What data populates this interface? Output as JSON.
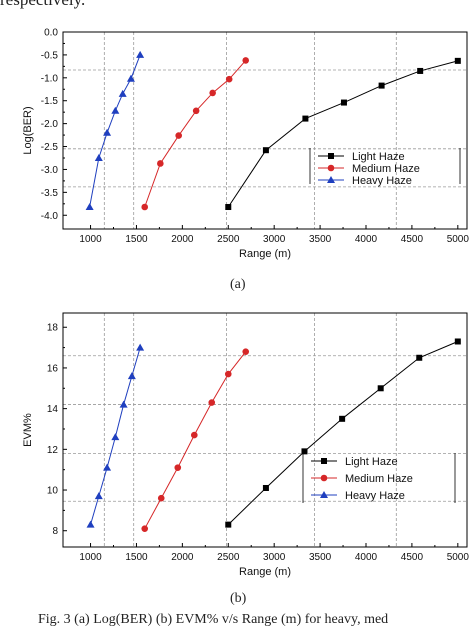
{
  "page": {
    "top_text": "respectively.",
    "caption": "Fig. 3 (a) Log(BER) (b) EVM% v/s Range (m) for heavy, med"
  },
  "chart_data": [
    {
      "type": "line",
      "panel_label": "(a)",
      "xlabel": "Range (m)",
      "ylabel": "Log(BER)",
      "xlim": [
        700,
        5100
      ],
      "ylim": [
        -4.3,
        0.0
      ],
      "xticks": [
        1000,
        1500,
        2000,
        2500,
        3000,
        3500,
        4000,
        4500,
        5000
      ],
      "yticks": [
        0.0,
        -0.5,
        -1.0,
        -1.5,
        -2.0,
        -2.5,
        -3.0,
        -3.5,
        -4.0
      ],
      "ytick_labels": [
        "0.0",
        "-0.5",
        "-1.0",
        "-1.5",
        "-2.0",
        "-2.5",
        "-3.0",
        "-3.5",
        "-4.0"
      ],
      "ref_x": [
        1150,
        1470,
        2480,
        3440,
        4330
      ],
      "ref_y": [
        -0.83,
        -2.55,
        -3.38
      ],
      "legend_position": "lower-right",
      "series": [
        {
          "name": "Light Haze",
          "color": "#000000",
          "marker": "square",
          "x": [
            2500,
            2910,
            3340,
            3760,
            4170,
            4590,
            5000
          ],
          "y": [
            -3.82,
            -2.58,
            -1.89,
            -1.54,
            -1.17,
            -0.85,
            -0.63
          ]
        },
        {
          "name": "Medium Haze",
          "color": "#d62728",
          "marker": "circle",
          "x": [
            1590,
            1760,
            1960,
            2150,
            2330,
            2510,
            2690
          ],
          "y": [
            -3.82,
            -2.87,
            -2.26,
            -1.72,
            -1.33,
            -1.03,
            -0.62
          ]
        },
        {
          "name": "Heavy Haze",
          "color": "#1f3fbf",
          "marker": "triangle",
          "x": [
            990,
            1090,
            1180,
            1270,
            1350,
            1440,
            1540
          ],
          "y": [
            -3.82,
            -2.75,
            -2.2,
            -1.72,
            -1.35,
            -1.02,
            -0.5
          ]
        }
      ]
    },
    {
      "type": "line",
      "panel_label": "(b)",
      "xlabel": "Range (m)",
      "ylabel": "EVM%",
      "xlim": [
        700,
        5100
      ],
      "ylim": [
        7.2,
        18.7
      ],
      "xticks": [
        1000,
        1500,
        2000,
        2500,
        3000,
        3500,
        4000,
        4500,
        5000
      ],
      "yticks": [
        8,
        10,
        12,
        14,
        16,
        18
      ],
      "ytick_labels": [
        "8",
        "10",
        "12",
        "14",
        "16",
        "18"
      ],
      "ref_x": [
        1150,
        1470,
        2480,
        3440,
        4330
      ],
      "ref_y": [
        16.6,
        14.2,
        11.8,
        9.45
      ],
      "legend_position": "lower-right",
      "series": [
        {
          "name": "Light Haze",
          "color": "#000000",
          "marker": "square",
          "x": [
            2500,
            2910,
            3330,
            3740,
            4160,
            4580,
            5000
          ],
          "y": [
            8.3,
            10.1,
            11.9,
            13.5,
            15.0,
            16.5,
            17.3
          ]
        },
        {
          "name": "Medium Haze",
          "color": "#d62728",
          "marker": "circle",
          "x": [
            1590,
            1770,
            1950,
            2130,
            2320,
            2500,
            2690
          ],
          "y": [
            8.1,
            9.6,
            11.1,
            12.7,
            14.3,
            15.7,
            16.8
          ]
        },
        {
          "name": "Heavy Haze",
          "color": "#1f3fbf",
          "marker": "triangle",
          "x": [
            1000,
            1090,
            1180,
            1270,
            1360,
            1450,
            1540
          ],
          "y": [
            8.3,
            9.7,
            11.1,
            12.6,
            14.2,
            15.6,
            17.0
          ]
        }
      ]
    }
  ]
}
